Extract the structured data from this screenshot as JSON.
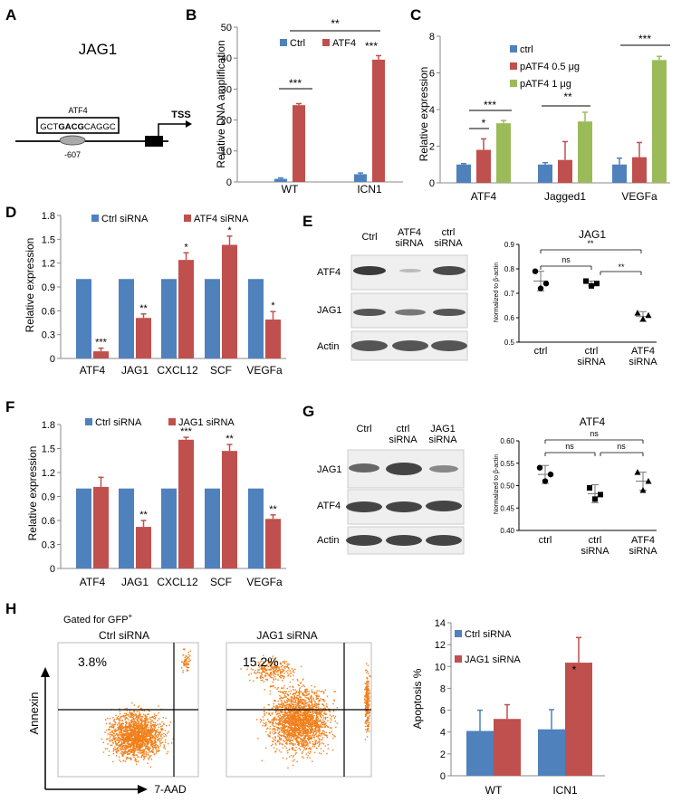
{
  "colors": {
    "blue": "#4f81bd",
    "red": "#c0504d",
    "green": "#9bbb59",
    "flow": "#f07f1a"
  },
  "panel_letters": [
    "A",
    "B",
    "C",
    "D",
    "E",
    "F",
    "G",
    "H"
  ],
  "panelA": {
    "gene": "JAG1",
    "tf_label": "ATF4",
    "seq_pre": "GCT",
    "seq_core": "GACG",
    "seq_post": "CAGGC",
    "position": "-607",
    "tss": "TSS"
  },
  "chart_data": [
    {
      "id": "B",
      "type": "bar",
      "ylabel": "Relative DNA amplification",
      "ylim": [
        0,
        50
      ],
      "yticks": [
        0,
        10,
        20,
        30,
        40,
        50
      ],
      "categories": [
        "WT",
        "ICN1"
      ],
      "series": [
        {
          "name": "Ctrl",
          "color": "#4f81bd",
          "values": [
            1,
            2.5
          ],
          "errors": [
            0.3,
            0.4
          ]
        },
        {
          "name": "ATF4",
          "color": "#c0504d",
          "values": [
            24.8,
            39.5
          ],
          "errors": [
            0.5,
            1.3
          ]
        }
      ],
      "annotations": [
        "***",
        "***",
        "**"
      ]
    },
    {
      "id": "C",
      "type": "bar",
      "ylabel": "Relative expression",
      "ylim": [
        0,
        8
      ],
      "yticks": [
        0,
        2,
        4,
        6,
        8
      ],
      "categories": [
        "ATF4",
        "Jagged1",
        "VEGFa"
      ],
      "series": [
        {
          "name": "ctrl",
          "color": "#4f81bd",
          "values": [
            1,
            1,
            1
          ],
          "errors": [
            0.05,
            0.1,
            0.35
          ]
        },
        {
          "name": "pATF4 0.5 μg",
          "color": "#c0504d",
          "values": [
            1.8,
            1.25,
            1.4
          ],
          "errors": [
            0.6,
            1.0,
            0.8
          ]
        },
        {
          "name": "pATF4 1 μg",
          "color": "#9bbb59",
          "values": [
            3.25,
            3.35,
            6.7
          ],
          "errors": [
            0.15,
            0.5,
            0.2
          ]
        }
      ],
      "annotations": [
        "*",
        "***",
        "**",
        "***"
      ]
    },
    {
      "id": "D",
      "type": "bar",
      "ylabel": "Relative expression",
      "ylim": [
        0,
        1.8
      ],
      "yticks": [
        "0",
        "0.3",
        "0.6",
        "0.9",
        "1.2",
        "1.5",
        "1.8"
      ],
      "categories": [
        "ATF4",
        "JAG1",
        "CXCL12",
        "SCF",
        "VEGFa"
      ],
      "series": [
        {
          "name": "Ctrl siRNA",
          "color": "#4f81bd",
          "values": [
            1,
            1,
            1,
            1,
            1
          ]
        },
        {
          "name": "ATF4 siRNA",
          "color": "#c0504d",
          "values": [
            0.09,
            0.51,
            1.24,
            1.43,
            0.49
          ],
          "errors": [
            0.04,
            0.05,
            0.09,
            0.11,
            0.1
          ]
        }
      ],
      "annotations": [
        "***",
        "**",
        "*",
        "*",
        "*"
      ]
    },
    {
      "id": "E",
      "type": "scatter",
      "title": "JAG1",
      "ylabel": "Normalized to β-actin",
      "ylim": [
        0.5,
        0.9
      ],
      "yticks": [
        "0.5",
        "0.6",
        "0.7",
        "0.8",
        "0.9"
      ],
      "categories": [
        "ctrl",
        "ctrl siRNA",
        "ATF4 siRNA"
      ],
      "points": [
        [
          0.79,
          0.74,
          0.72
        ],
        [
          0.75,
          0.74,
          0.73
        ],
        [
          0.62,
          0.61,
          0.595
        ]
      ],
      "means": [
        0.75,
        0.74,
        0.605
      ],
      "sds": [
        0.04,
        0.01,
        0.02
      ],
      "annotations": [
        "ns",
        "**",
        "**"
      ]
    },
    {
      "id": "F",
      "type": "bar",
      "ylabel": "Relative expression",
      "ylim": [
        0,
        1.8
      ],
      "yticks": [
        "0",
        "0.3",
        "0.6",
        "0.9",
        "1.2",
        "1.5",
        "1.8"
      ],
      "categories": [
        "ATF4",
        "JAG1",
        "CXCL12",
        "SCF",
        "VEGFa"
      ],
      "series": [
        {
          "name": "Ctrl siRNA",
          "color": "#4f81bd",
          "values": [
            1,
            1,
            1,
            1,
            1
          ]
        },
        {
          "name": "JAG1 siRNA",
          "color": "#c0504d",
          "values": [
            1.02,
            0.52,
            1.61,
            1.47,
            0.62
          ],
          "errors": [
            0.12,
            0.08,
            0.03,
            0.08,
            0.05
          ]
        }
      ],
      "annotations": [
        "",
        "**",
        "***",
        "**",
        "**"
      ]
    },
    {
      "id": "G",
      "type": "scatter",
      "title": "ATF4",
      "ylabel": "Normalized to β-actin",
      "ylim": [
        0.4,
        0.6
      ],
      "yticks": [
        "0.40",
        "0.45",
        "0.50",
        "0.55",
        "0.60"
      ],
      "categories": [
        "ctrl",
        "ctrl siRNA",
        "ATF4 siRNA"
      ],
      "points": [
        [
          0.54,
          0.525,
          0.51
        ],
        [
          0.495,
          0.48,
          0.47
        ],
        [
          0.53,
          0.51,
          0.49
        ]
      ],
      "means": [
        0.525,
        0.482,
        0.51
      ],
      "sds": [
        0.02,
        0.02,
        0.02
      ],
      "annotations": [
        "ns",
        "ns",
        "ns"
      ]
    },
    {
      "id": "H",
      "type": "bar",
      "ylabel": "Apoptosis %",
      "ylim": [
        0,
        14
      ],
      "yticks": [
        0,
        2,
        4,
        6,
        8,
        10,
        12,
        14
      ],
      "categories": [
        "WT",
        "ICN1"
      ],
      "series": [
        {
          "name": "Ctrl siRNA",
          "color": "#4f81bd",
          "values": [
            4.1,
            4.25
          ],
          "errors": [
            1.9,
            1.8
          ]
        },
        {
          "name": "JAG1 siRNA",
          "color": "#c0504d",
          "values": [
            5.2,
            10.35
          ],
          "errors": [
            1.3,
            2.3
          ]
        }
      ],
      "annotations": [
        "*"
      ]
    }
  ],
  "blotE": {
    "lanes": [
      "Ctrl",
      "ATF4 siRNA",
      "ctrl siRNA"
    ],
    "rows": [
      "ATF4",
      "JAG1",
      "Actin"
    ]
  },
  "blotG": {
    "lanes": [
      "Ctrl",
      "ctrl siRNA",
      "JAG1 siRNA"
    ],
    "rows": [
      "JAG1",
      "ATF4",
      "Actin"
    ]
  },
  "flow": {
    "gate_prefix": "Gated for GFP",
    "gate_sup": "+",
    "plots": [
      {
        "title": "Ctrl siRNA",
        "percent": "3.8%"
      },
      {
        "title": "JAG1 siRNA",
        "percent": "15.2%"
      }
    ],
    "ylabel": "Annexin",
    "xlabel": "7-AAD"
  }
}
